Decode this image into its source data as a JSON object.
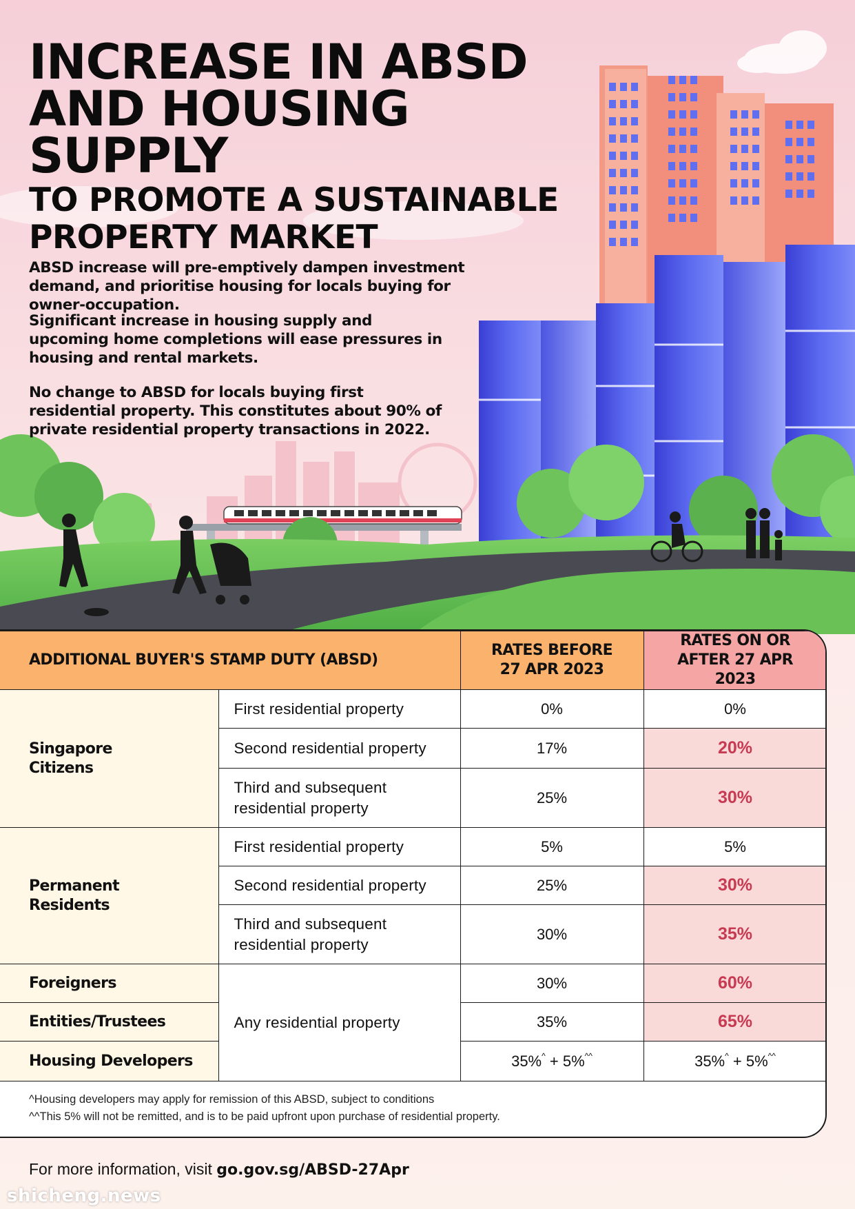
{
  "title": {
    "line1": "INCREASE IN ABSD",
    "line2": "AND HOUSING SUPPLY",
    "line3": "TO PROMOTE A SUSTAINABLE",
    "line4": "PROPERTY MARKET"
  },
  "paragraphs": {
    "p1": "ABSD increase will pre-emptively dampen investment demand, and prioritise housing for locals buying for owner-occupation.",
    "p2": "Significant increase in housing supply and upcoming home completions will ease pressures in housing and rental markets.",
    "p3": "No change to ABSD for locals buying first residential property. This constitutes about 90% of private residential property transactions in 2022."
  },
  "table": {
    "header": {
      "main": "ADDITIONAL BUYER'S STAMP DUTY (ABSD)",
      "before": "RATES BEFORE 27 APR 2023",
      "after": "RATES ON OR AFTER 27 APR 2023"
    },
    "citizens": {
      "label": "Singapore Citizens",
      "rows": [
        {
          "property": "First residential property",
          "before": "0%",
          "after": "0%"
        },
        {
          "property": "Second residential property",
          "before": "17%",
          "after": "20%"
        },
        {
          "property": "Third and subsequent residential property",
          "before": "25%",
          "after": "30%"
        }
      ]
    },
    "pr": {
      "label": "Permanent Residents",
      "rows": [
        {
          "property": "First residential property",
          "before": "5%",
          "after": "5%"
        },
        {
          "property": "Second residential property",
          "before": "25%",
          "after": "30%"
        },
        {
          "property": "Third and subsequent residential property",
          "before": "30%",
          "after": "35%"
        }
      ]
    },
    "others": {
      "property": "Any residential property",
      "foreigners": {
        "label": "Foreigners",
        "before": "30%",
        "after": "60%"
      },
      "entities": {
        "label": "Entities/Trustees",
        "before": "35%",
        "after": "65%"
      },
      "developers": {
        "label": "Housing Developers",
        "before_a": "35%",
        "before_a_mark": "^",
        "before_b": " + 5%",
        "before_b_mark": "^^",
        "after_a": "35%",
        "after_a_mark": "^",
        "after_b": " + 5%",
        "after_b_mark": "^^"
      }
    },
    "notes": {
      "n1": "^Housing developers may apply for remission of this ABSD, subject to conditions",
      "n2": "^^This 5% will not be remitted, and is to be paid upfront upon purchase of residential property."
    }
  },
  "footer": {
    "prefix": "For more information, visit ",
    "link": "go.gov.sg/ABSD-27Apr"
  },
  "watermark": "shicheng.news",
  "colors": {
    "header_orange": "#fbb26c",
    "header_pink": "#f4a5a4",
    "highlight_bg": "#fad9d9",
    "highlight_text": "#c73a52",
    "category_bg": "#fff8e6"
  }
}
